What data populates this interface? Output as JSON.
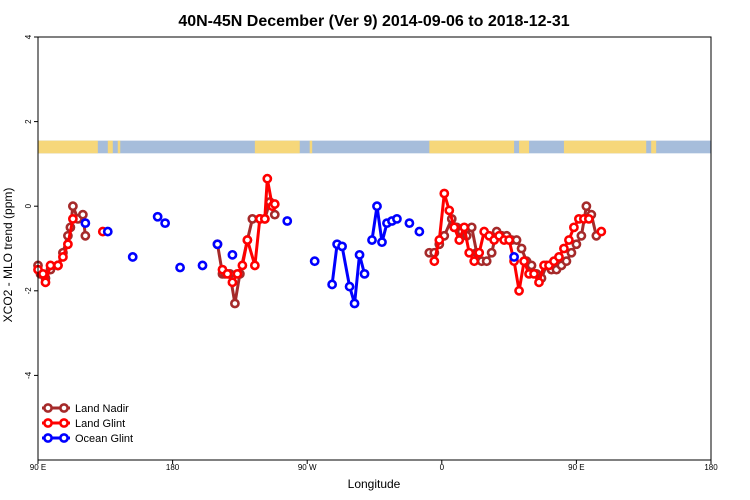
{
  "chart_data": {
    "type": "line",
    "title": "40N-45N December (Ver 9)   2014-09-06 to 2018-12-31",
    "xlabel": "Longitude",
    "ylabel": "XCO2 - MLO trend (ppm)",
    "xlim": [
      -90,
      180
    ],
    "ylim": [
      -6,
      4
    ],
    "x_ticks": [
      {
        "value": -90,
        "label": "90 E"
      },
      {
        "value": -36,
        "label": "180"
      },
      {
        "value": 18,
        "label": "90 W"
      },
      {
        "value": 72,
        "label": "0"
      },
      {
        "value": 126,
        "label": "90 E"
      },
      {
        "value": 180,
        "label": "180"
      }
    ],
    "y_ticks": [
      {
        "value": 4,
        "label": "4"
      },
      {
        "value": 2,
        "label": "2"
      },
      {
        "value": 0,
        "label": "0"
      },
      {
        "value": -2,
        "label": "-2"
      },
      {
        "value": -4,
        "label": "-4"
      }
    ],
    "land_ocean_strip": {
      "y_range": [
        1.25,
        1.55
      ],
      "land_color": "#f6d77a",
      "ocean_color": "#a6bddb",
      "land_segments": [
        [
          -90,
          -66
        ],
        [
          -62,
          -60
        ],
        [
          -58,
          -57
        ],
        [
          -3,
          15
        ],
        [
          19,
          20
        ],
        [
          67,
          101
        ],
        [
          103,
          107
        ],
        [
          121,
          154
        ],
        [
          156,
          158
        ]
      ]
    },
    "legend": {
      "position": "bottom-left"
    },
    "series": [
      {
        "name": "Land Nadir",
        "color": "#a52a2a",
        "segments": [
          [
            [
              -90,
              -1.4
            ],
            [
              -89,
              -1.6
            ],
            [
              -87,
              -1.7
            ],
            [
              -85,
              -1.5
            ],
            [
              -82,
              -1.4
            ],
            [
              -80,
              -1.1
            ],
            [
              -78,
              -0.7
            ],
            [
              -77,
              -0.5
            ],
            [
              -76,
              0.0
            ],
            [
              -74,
              -0.3
            ],
            [
              -72,
              -0.2
            ],
            [
              -71,
              -0.7
            ]
          ],
          [
            [
              -18,
              -0.9
            ],
            [
              -16,
              -1.6
            ],
            [
              -15,
              -1.6
            ],
            [
              -13,
              -1.6
            ],
            [
              -11,
              -2.3
            ],
            [
              -9,
              -1.6
            ],
            [
              -6,
              -0.8
            ],
            [
              -4,
              -0.3
            ],
            [
              -1,
              -0.3
            ],
            [
              1,
              -0.3
            ],
            [
              3,
              0.1
            ],
            [
              5,
              -0.2
            ]
          ],
          [
            [
              67,
              -1.1
            ],
            [
              69,
              -1.1
            ],
            [
              71,
              -0.9
            ],
            [
              73,
              -0.7
            ],
            [
              76,
              -0.3
            ],
            [
              78,
              -0.5
            ],
            [
              80,
              -0.6
            ],
            [
              82,
              -0.7
            ],
            [
              84,
              -0.5
            ],
            [
              86,
              -1.1
            ],
            [
              88,
              -1.3
            ],
            [
              90,
              -1.3
            ],
            [
              92,
              -1.1
            ],
            [
              94,
              -0.6
            ],
            [
              96,
              -0.7
            ],
            [
              98,
              -0.7
            ],
            [
              100,
              -0.8
            ],
            [
              102,
              -0.8
            ],
            [
              104,
              -1.0
            ],
            [
              106,
              -1.3
            ],
            [
              108,
              -1.4
            ],
            [
              110,
              -1.6
            ],
            [
              112,
              -1.7
            ],
            [
              114,
              -1.4
            ],
            [
              116,
              -1.5
            ],
            [
              118,
              -1.5
            ],
            [
              120,
              -1.4
            ],
            [
              122,
              -1.3
            ],
            [
              124,
              -1.1
            ],
            [
              126,
              -0.9
            ],
            [
              128,
              -0.7
            ],
            [
              130,
              0.0
            ],
            [
              132,
              -0.2
            ],
            [
              134,
              -0.7
            ]
          ]
        ]
      },
      {
        "name": "Land Glint",
        "color": "#ff0000",
        "segments": [
          [
            [
              -90,
              -1.5
            ],
            [
              -88,
              -1.6
            ],
            [
              -87,
              -1.8
            ],
            [
              -85,
              -1.4
            ],
            [
              -82,
              -1.4
            ],
            [
              -80,
              -1.2
            ],
            [
              -78,
              -0.9
            ],
            [
              -76,
              -0.3
            ]
          ],
          [
            [
              -82,
              -1.4
            ]
          ],
          [
            [
              -64,
              -0.6
            ]
          ],
          [
            [
              -16,
              -1.5
            ],
            [
              -14,
              -1.6
            ],
            [
              -12,
              -1.8
            ],
            [
              -10,
              -1.6
            ],
            [
              -8,
              -1.4
            ],
            [
              -6,
              -0.8
            ],
            [
              -3,
              -1.4
            ],
            [
              -1,
              -0.3
            ],
            [
              1,
              -0.3
            ],
            [
              2,
              0.65
            ],
            [
              4,
              0.0
            ],
            [
              5,
              0.05
            ]
          ],
          [
            [
              69,
              -1.3
            ],
            [
              71,
              -0.8
            ],
            [
              73,
              0.3
            ],
            [
              75,
              -0.1
            ],
            [
              77,
              -0.5
            ],
            [
              79,
              -0.8
            ],
            [
              81,
              -0.5
            ],
            [
              83,
              -1.1
            ],
            [
              85,
              -1.3
            ],
            [
              87,
              -1.1
            ],
            [
              89,
              -0.6
            ],
            [
              91,
              -0.7
            ],
            [
              93,
              -0.8
            ],
            [
              95,
              -0.7
            ],
            [
              97,
              -0.8
            ],
            [
              99,
              -0.8
            ],
            [
              101,
              -1.3
            ],
            [
              103,
              -2.0
            ],
            [
              105,
              -1.3
            ],
            [
              107,
              -1.6
            ],
            [
              109,
              -1.6
            ],
            [
              111,
              -1.8
            ],
            [
              113,
              -1.4
            ],
            [
              115,
              -1.4
            ],
            [
              117,
              -1.3
            ],
            [
              119,
              -1.2
            ],
            [
              121,
              -1.0
            ],
            [
              123,
              -0.8
            ],
            [
              125,
              -0.5
            ],
            [
              127,
              -0.3
            ],
            [
              129,
              -0.3
            ],
            [
              131,
              -0.3
            ]
          ],
          [
            [
              136,
              -0.6
            ]
          ]
        ]
      },
      {
        "name": "Ocean Glint",
        "color": "#0000ff",
        "segments": [
          [
            [
              -71,
              -0.4
            ]
          ],
          [
            [
              -62,
              -0.6
            ]
          ],
          [
            [
              -52,
              -1.2
            ]
          ],
          [
            [
              -42,
              -0.25
            ]
          ],
          [
            [
              -39,
              -0.4
            ]
          ],
          [
            [
              -33,
              -1.45
            ]
          ],
          [
            [
              -24,
              -1.4
            ]
          ],
          [
            [
              -18,
              -0.9
            ]
          ],
          [
            [
              -12,
              -1.15
            ]
          ],
          [
            [
              10,
              -0.35
            ]
          ],
          [
            [
              21,
              -1.3
            ]
          ],
          [
            [
              28,
              -1.85
            ],
            [
              30,
              -0.9
            ],
            [
              32,
              -0.95
            ],
            [
              35,
              -1.9
            ],
            [
              37,
              -2.3
            ],
            [
              39,
              -1.15
            ],
            [
              41,
              -1.6
            ]
          ],
          [
            [
              44,
              -0.8
            ],
            [
              46,
              0.0
            ],
            [
              48,
              -0.85
            ],
            [
              50,
              -0.4
            ],
            [
              52,
              -0.35
            ],
            [
              54,
              -0.3
            ]
          ],
          [
            [
              59,
              -0.4
            ]
          ],
          [
            [
              63,
              -0.6
            ]
          ],
          [
            [
              101,
              -1.2
            ]
          ]
        ]
      }
    ]
  }
}
